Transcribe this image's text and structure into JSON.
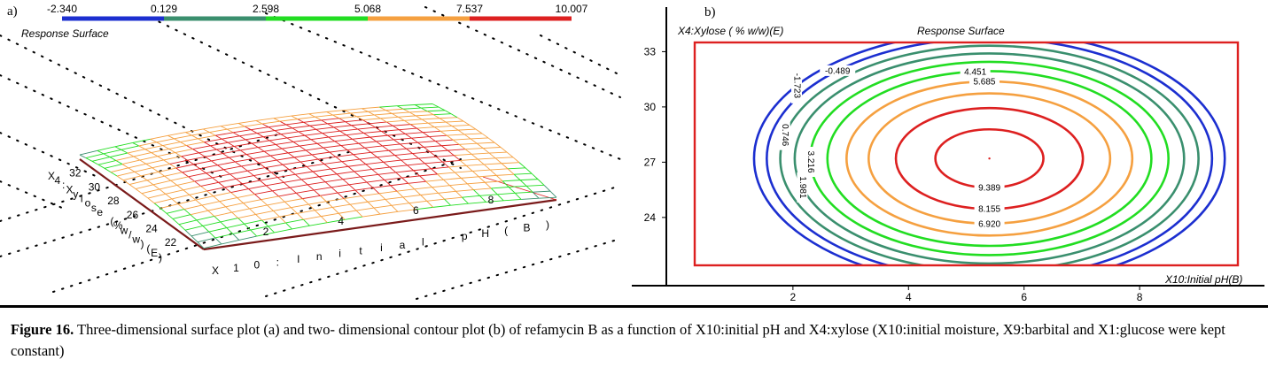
{
  "panel_a": {
    "label": "a)",
    "title": "Response Surface",
    "colorbar": {
      "ticks": [
        "-2.340",
        "0.129",
        "2.598",
        "5.068",
        "7.537",
        "10.007"
      ],
      "colors": [
        "#1c2fd0",
        "#3a8f6e",
        "#22dd22",
        "#f5a040",
        "#dd2020"
      ]
    },
    "x_axis_title": "X10:Initial pH(B)",
    "y_axis_title": "X4:Xylose (%w/w)(E)"
  },
  "panel_b": {
    "label": "b)",
    "title": "Response Surface",
    "y_axis_title": "X4:Xylose ( % w/w)(E)",
    "x_axis_title": "X10:Initial pH(B)",
    "contour_labels": [
      "-1.723",
      "-0.489",
      "0.746",
      "1.981",
      "3.216",
      "4.451",
      "5.685",
      "6.920",
      "8.155",
      "9.389"
    ]
  },
  "chart_data": [
    {
      "type": "surface",
      "title": "Response Surface",
      "xlabel": "X10:Initial pH(B)",
      "ylabel": "X4:Xylose (%w/w)(E)",
      "x_ticks": [
        2,
        4,
        6,
        8
      ],
      "y_ticks": [
        22,
        24,
        26,
        28,
        30,
        32
      ],
      "xlim": [
        0.3,
        9.7
      ],
      "ylim": [
        21,
        34
      ],
      "colorbar_levels": [
        -2.34,
        0.129,
        2.598,
        5.068,
        7.537,
        10.007
      ],
      "colorbar_colors": [
        "#1c2fd0",
        "#3a8f6e",
        "#22dd22",
        "#f5a040",
        "#dd2020"
      ]
    },
    {
      "type": "contour",
      "title": "Response Surface",
      "xlabel": "X10:Initial pH(B)",
      "ylabel": "X4:Xylose ( % w/w)(E)",
      "x_ticks": [
        2,
        4,
        6,
        8
      ],
      "y_ticks": [
        24,
        27,
        30,
        33
      ],
      "xlim": [
        0.3,
        9.7
      ],
      "ylim": [
        21.4,
        33.5
      ],
      "center": [
        5.4,
        27.2
      ],
      "levels": [
        {
          "value": -1.723,
          "label": "-1.723",
          "color": "#1c2fd0"
        },
        {
          "value": -0.489,
          "label": "-0.489",
          "color": "#1c2fd0"
        },
        {
          "value": 0.746,
          "label": "0.746",
          "color": "#3a8f6e"
        },
        {
          "value": 1.981,
          "label": "1.981",
          "color": "#3a8f6e"
        },
        {
          "value": 3.216,
          "label": "3.216",
          "color": "#22dd22"
        },
        {
          "value": 4.451,
          "label": "4.451",
          "color": "#22dd22"
        },
        {
          "value": 5.685,
          "label": "5.685",
          "color": "#f5a040"
        },
        {
          "value": 6.92,
          "label": "6.920",
          "color": "#f5a040"
        },
        {
          "value": 8.155,
          "label": "8.155",
          "color": "#dd2020"
        },
        {
          "value": 9.389,
          "label": "9.389",
          "color": "#dd2020"
        }
      ]
    }
  ],
  "caption": {
    "figure_label": "Figure 16.",
    "text": " Three-dimensional surface plot (a) and two- dimensional contour plot (b) of refamycin B as a function of X10:initial pH and X4:xylose (X10:initial moisture, X9:barbital and X1:glucose were kept constant)"
  }
}
